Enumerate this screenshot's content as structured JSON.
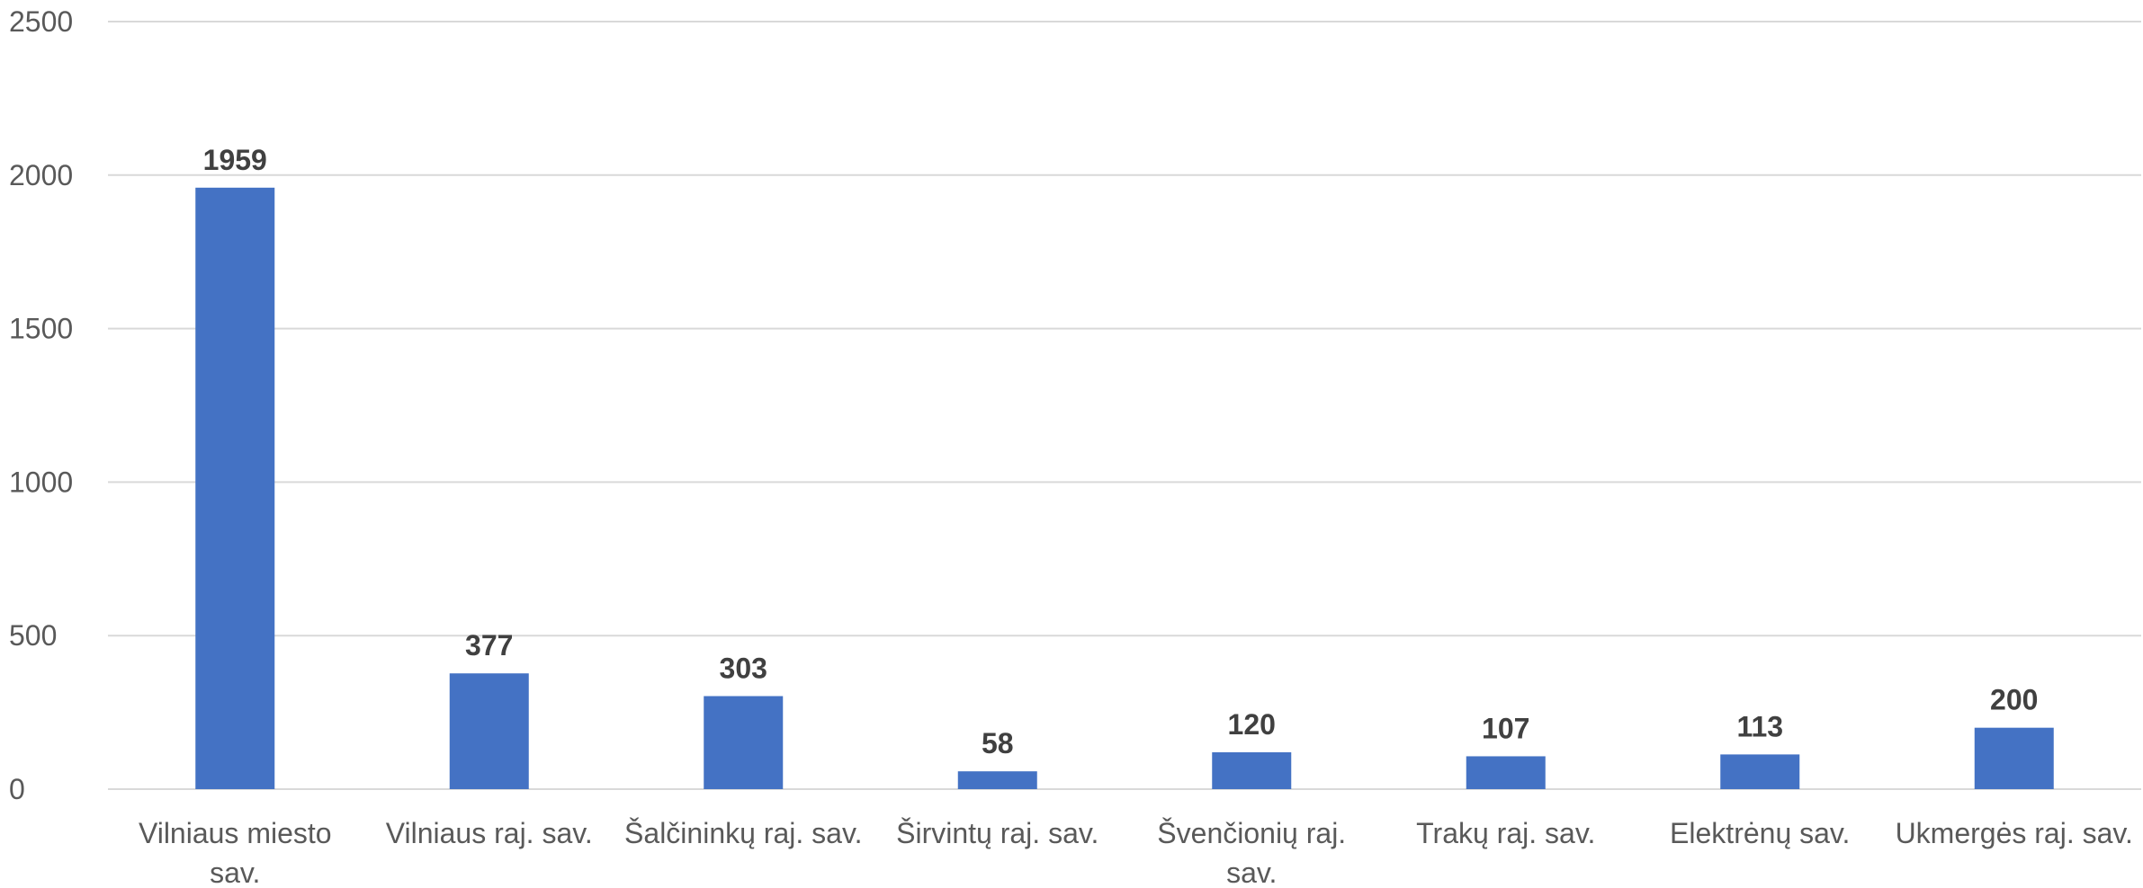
{
  "chart_data": {
    "type": "bar",
    "categories": [
      "Vilniaus miesto sav.",
      "Vilniaus raj. sav.",
      "Šalčininkų raj. sav.",
      "Širvintų raj. sav.",
      "Švenčionių raj. sav.",
      "Trakų raj. sav.",
      "Elektrėnų sav.",
      "Ukmergės raj. sav."
    ],
    "category_lines": [
      [
        "Vilniaus miesto",
        "sav."
      ],
      [
        "Vilniaus raj. sav."
      ],
      [
        "Šalčininkų raj. sav."
      ],
      [
        "Širvintų raj. sav."
      ],
      [
        "Švenčionių raj.",
        "sav."
      ],
      [
        "Trakų raj. sav."
      ],
      [
        "Elektrėnų sav."
      ],
      [
        "Ukmergės raj. sav."
      ]
    ],
    "values": [
      1959,
      377,
      303,
      58,
      120,
      107,
      113,
      200
    ],
    "data_labels": [
      "1959",
      "377",
      "303",
      "58",
      "120",
      "107",
      "113",
      "200"
    ],
    "ylim": [
      0,
      2500
    ],
    "yticks": [
      0,
      500,
      1000,
      1500,
      2000,
      2500
    ],
    "ytick_labels": [
      "0",
      "500",
      "1000",
      "1500",
      "2000",
      "2500"
    ],
    "grid": true,
    "legend": "none",
    "title": "",
    "xlabel": "",
    "ylabel": "",
    "colors": {
      "bar": "#4472c4",
      "grid": "#d9d9d9",
      "tick_text": "#595959",
      "data_label_text": "#404040"
    }
  }
}
